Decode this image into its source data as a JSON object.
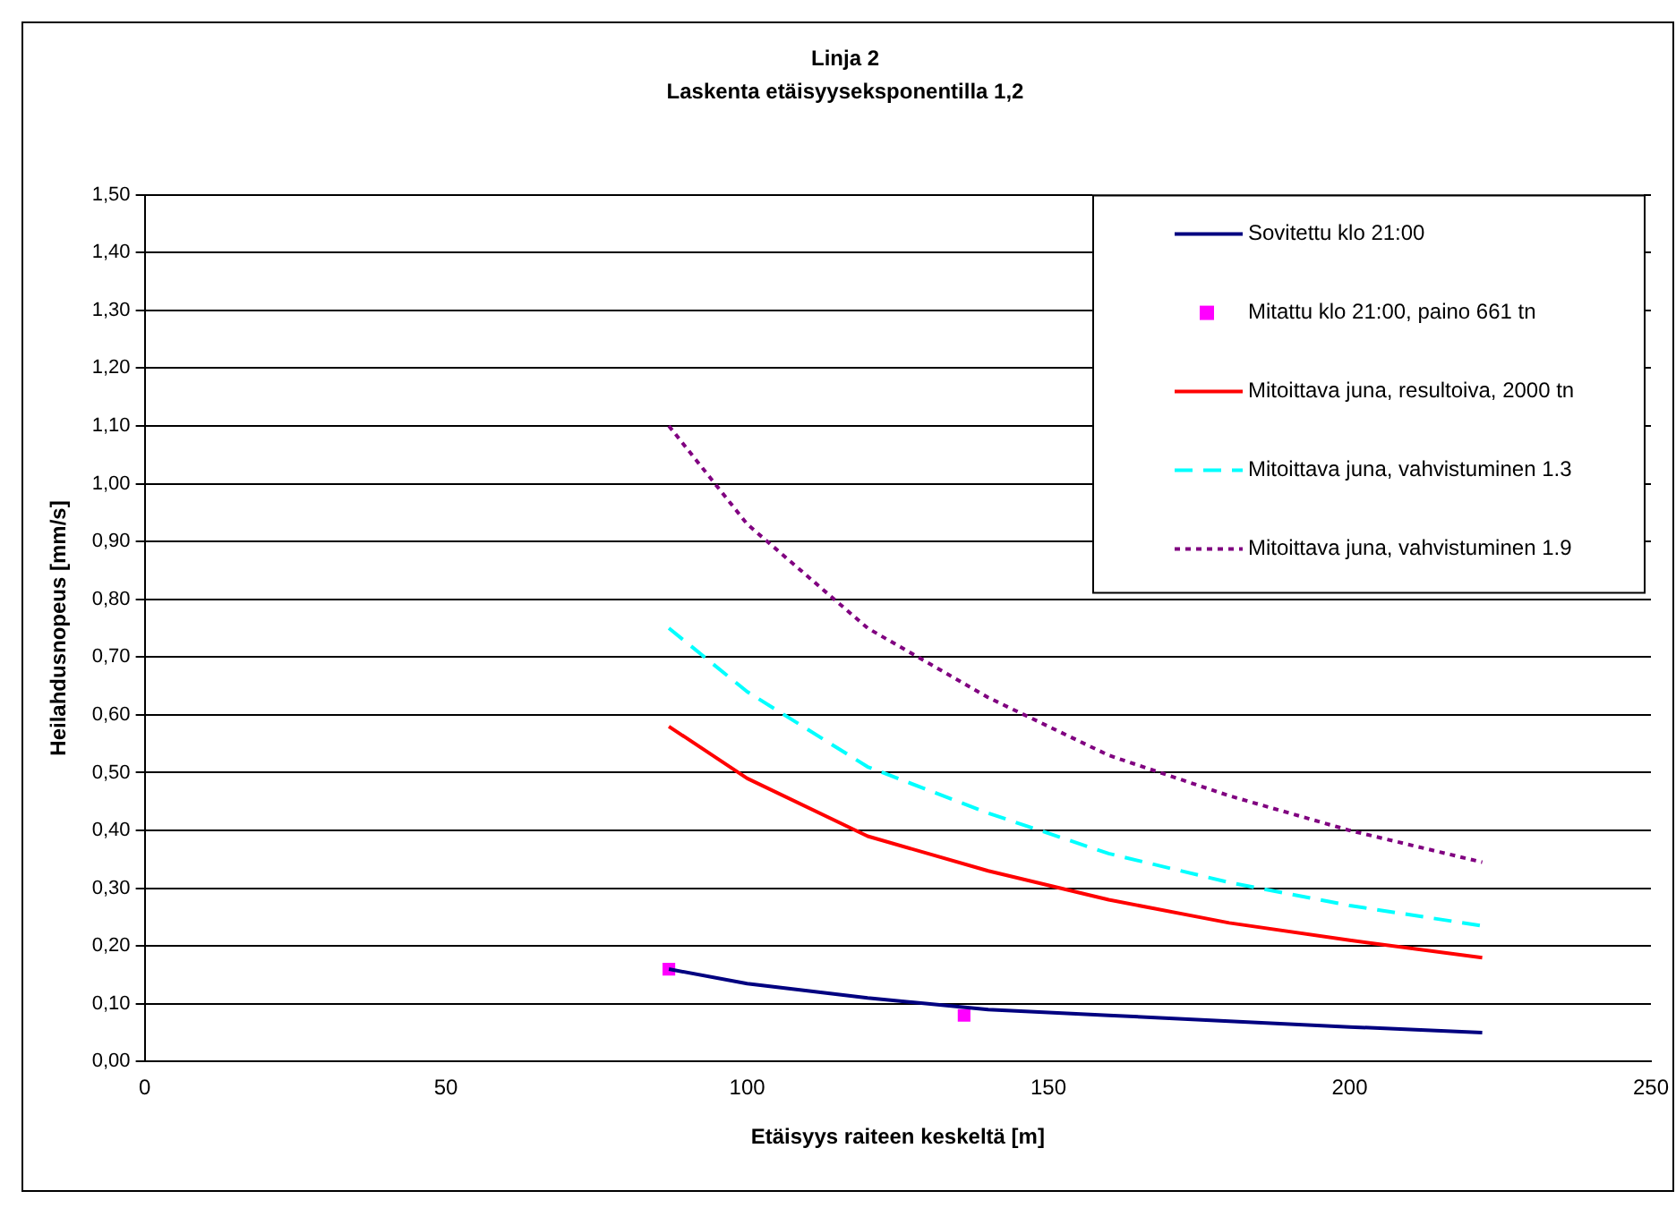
{
  "chart_data": {
    "type": "line",
    "title": "Linja 2",
    "subtitle": "Laskenta etäisyyseksponentilla 1,2",
    "xlabel": "Etäisyys raiteen keskeltä [m]",
    "ylabel": "Heilahdusnopeus [mm/s]",
    "x": [
      87,
      100,
      120,
      140,
      160,
      180,
      200,
      222
    ],
    "series": [
      {
        "name": "Sovitettu klo 21:00",
        "color": "#000080",
        "line_style": "solid",
        "values": [
          0.16,
          0.135,
          0.11,
          0.09,
          0.08,
          0.07,
          0.06,
          0.05
        ]
      },
      {
        "name": "Mitattu klo 21:00, paino 661 tn",
        "type": "scatter",
        "marker": "square",
        "color": "#ff00ff",
        "x": [
          87,
          136
        ],
        "values": [
          0.16,
          0.08
        ]
      },
      {
        "name": "Mitoittava juna, resultoiva, 2000 tn",
        "color": "#ff0000",
        "line_style": "solid",
        "values": [
          0.58,
          0.49,
          0.39,
          0.33,
          0.28,
          0.24,
          0.21,
          0.18
        ]
      },
      {
        "name": "Mitoittava juna, vahvistuminen 1.3",
        "color": "#00ffff",
        "line_style": "dashed",
        "values": [
          0.75,
          0.64,
          0.51,
          0.43,
          0.36,
          0.31,
          0.27,
          0.235
        ]
      },
      {
        "name": "Mitoittava juna, vahvistuminen 1.9",
        "color": "#800080",
        "line_style": "dotted",
        "values": [
          1.1,
          0.93,
          0.75,
          0.63,
          0.53,
          0.46,
          0.4,
          0.345
        ]
      }
    ],
    "xlim": [
      0,
      250
    ],
    "xticks": [
      0,
      50,
      100,
      150,
      200,
      250
    ],
    "ylim": [
      0,
      1.5
    ],
    "yticks": [
      {
        "value": 0,
        "label": "0,00"
      },
      {
        "value": 0.1,
        "label": "0,10"
      },
      {
        "value": 0.2,
        "label": "0,20"
      },
      {
        "value": 0.3,
        "label": "0,30"
      },
      {
        "value": 0.4,
        "label": "0,40"
      },
      {
        "value": 0.5,
        "label": "0,50"
      },
      {
        "value": 0.6,
        "label": "0,60"
      },
      {
        "value": 0.7,
        "label": "0,70"
      },
      {
        "value": 0.8,
        "label": "0,80"
      },
      {
        "value": 0.9,
        "label": "0,90"
      },
      {
        "value": 1.0,
        "label": "1,00"
      },
      {
        "value": 1.1,
        "label": "1,10"
      },
      {
        "value": 1.2,
        "label": "1,20"
      },
      {
        "value": 1.3,
        "label": "1,30"
      },
      {
        "value": 1.4,
        "label": "1,40"
      },
      {
        "value": 1.5,
        "label": "1,50"
      }
    ],
    "grid": "y",
    "legend": "top right",
    "marker": "none"
  }
}
